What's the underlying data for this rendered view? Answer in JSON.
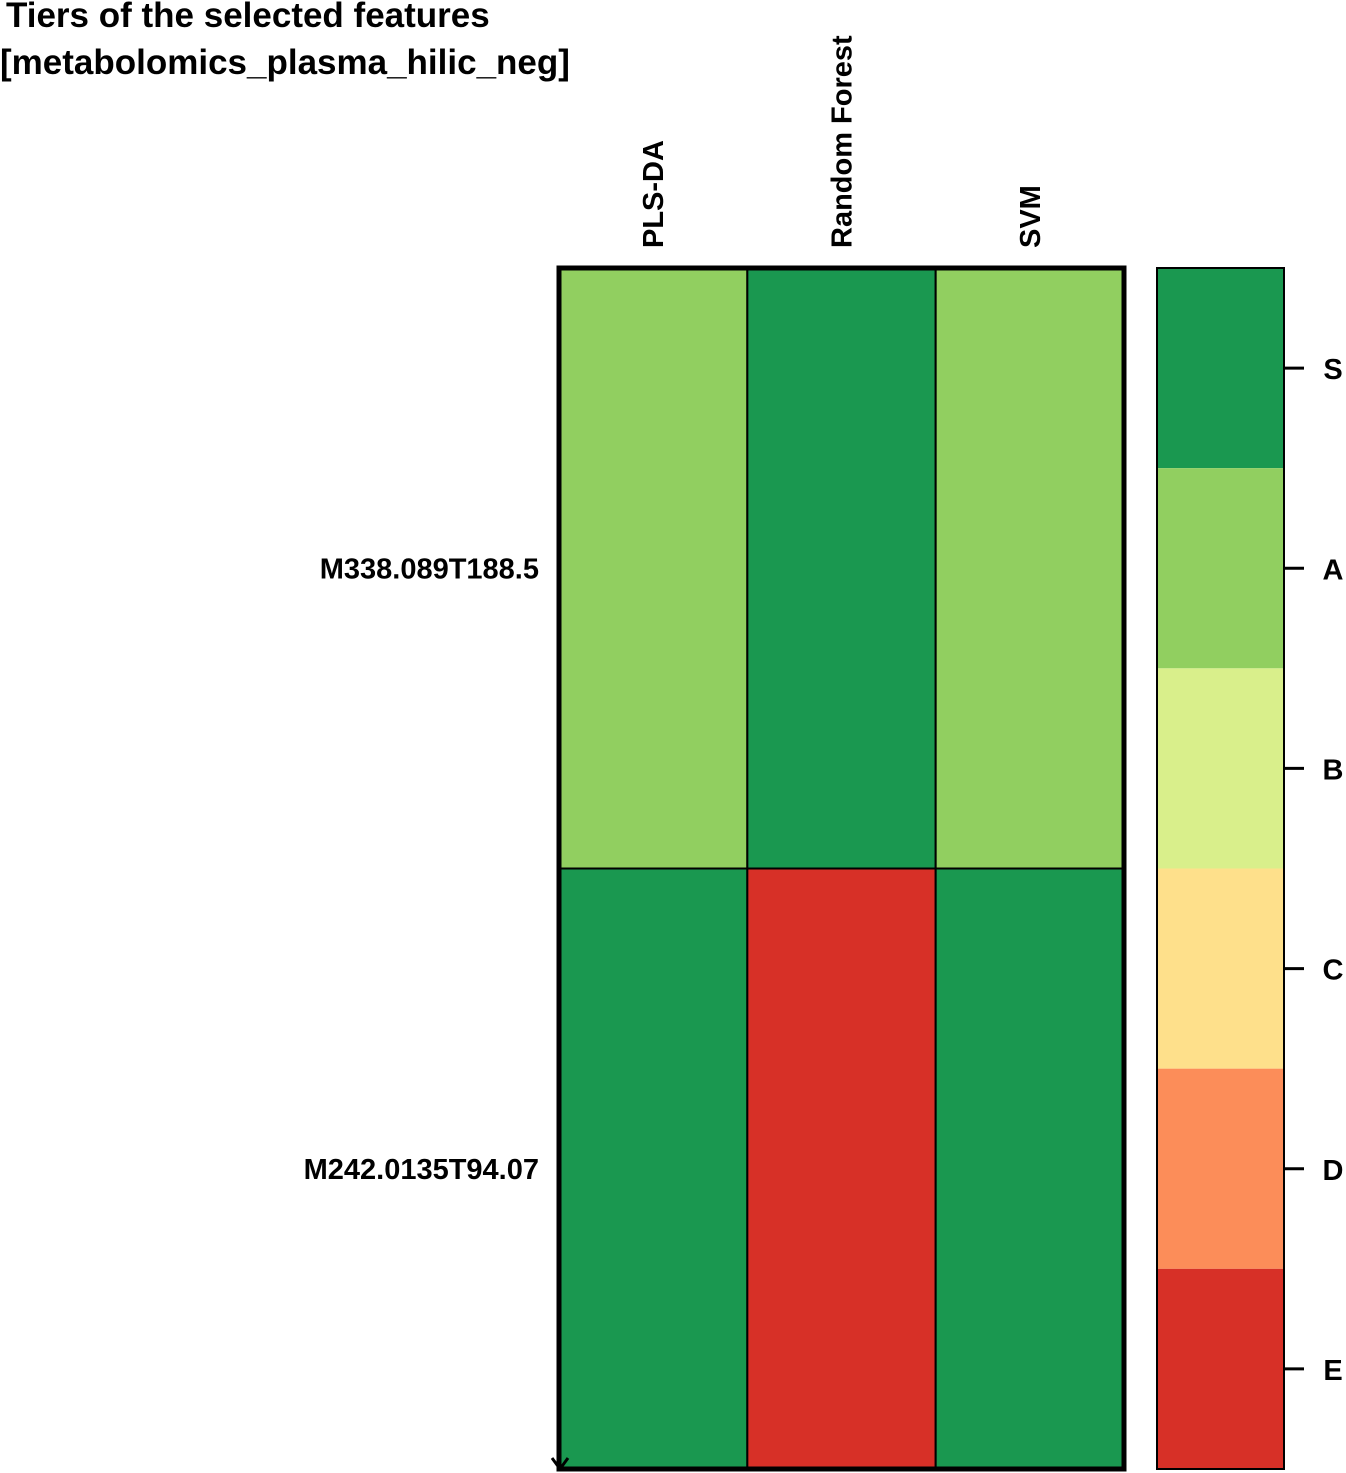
{
  "chart_data": {
    "type": "heatmap",
    "title": "Tiers of the selected features [metabolomics_plasma_hilic_neg]",
    "title_lines": [
      "Tiers of the selected features",
      "[metabolomics_plasma_hilic_neg]"
    ],
    "columns": [
      "PLS-DA",
      "Random Forest",
      "SVM"
    ],
    "rows": [
      "M338.089T188.5",
      "M242.0135T94.07"
    ],
    "values": [
      [
        "A",
        "S",
        "A"
      ],
      [
        "S",
        "E",
        "S"
      ]
    ],
    "legend": {
      "placement": "right",
      "tiers": [
        {
          "label": "S",
          "color": "#1a9850"
        },
        {
          "label": "A",
          "color": "#91cf60"
        },
        {
          "label": "B",
          "color": "#d9ef8b"
        },
        {
          "label": "C",
          "color": "#fee08b"
        },
        {
          "label": "D",
          "color": "#fc8d59"
        },
        {
          "label": "E",
          "color": "#d73027"
        }
      ]
    },
    "grid": true
  }
}
